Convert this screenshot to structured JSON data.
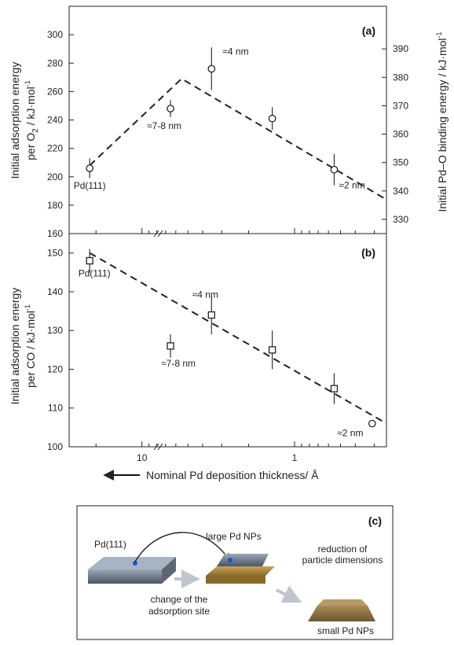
{
  "chart_data": [
    {
      "panel": "(a)",
      "type": "scatter",
      "ylabel_line1": "Initial adsorption energy",
      "ylabel_line2_prefix": "per O",
      "ylabel_line2_sub": "2",
      "ylabel_line2_suffix": " / kJ·mol",
      "ylabel_line2_sup": "-1",
      "y2label_prefix": "Initial Pd–O binding energy / kJ·mol",
      "y2label_sup": "-1",
      "ylim": [
        160,
        320
      ],
      "yticks": [
        160,
        180,
        200,
        220,
        240,
        260,
        280,
        300
      ],
      "y2lim": [
        325,
        405
      ],
      "y2ticks": [
        330,
        340,
        350,
        360,
        370,
        380,
        390
      ],
      "xscale": "log-reversed",
      "xlim": [
        30,
        0.25
      ],
      "points": [
        {
          "label": "Pd(111)",
          "x": 22,
          "y": 206,
          "err": 7
        },
        {
          "label": "≈7-8 nm",
          "x": 6.5,
          "y": 248,
          "err": 6
        },
        {
          "label": "≈4 nm",
          "x": 3.5,
          "y": 276,
          "err": 15
        },
        {
          "label": "",
          "x": 1.4,
          "y": 241,
          "err": 8
        },
        {
          "label": "≈2 nm",
          "x": 0.55,
          "y": 205,
          "err": 11
        }
      ],
      "trend": [
        [
          22,
          208
        ],
        [
          5.5,
          269
        ],
        [
          0.25,
          184
        ]
      ]
    },
    {
      "panel": "(b)",
      "type": "scatter",
      "ylabel_line1": "Initial adsorption energy",
      "ylabel_line2": "per CO / kJ·mol",
      "ylabel_line2_sup": "-1",
      "xlabel": "Nominal Pd deposition thickness/ Å",
      "ylim": [
        100,
        155
      ],
      "yticks": [
        100,
        110,
        120,
        130,
        140,
        150
      ],
      "xscale": "log-reversed",
      "xlim": [
        30,
        0.25
      ],
      "xticks": [
        {
          "value": 10,
          "label": "10"
        },
        {
          "value": 1,
          "label": "1"
        }
      ],
      "points": [
        {
          "label": "Pd(111)",
          "x": 22,
          "y": 148,
          "err": 3,
          "marker": "square"
        },
        {
          "label": "≈7-8 nm",
          "x": 6.5,
          "y": 126,
          "err": 3,
          "marker": "square"
        },
        {
          "label": "≈4 nm",
          "x": 3.5,
          "y": 134,
          "err": 5,
          "marker": "square"
        },
        {
          "label": "",
          "x": 1.4,
          "y": 125,
          "err": 5,
          "marker": "square"
        },
        {
          "label": "",
          "x": 0.55,
          "y": 115,
          "err": 4,
          "marker": "square"
        },
        {
          "label": "≈2 nm",
          "x": 0.31,
          "y": 106,
          "err": 0,
          "marker": "circle"
        }
      ],
      "trend": [
        [
          22,
          150
        ],
        [
          0.25,
          106
        ]
      ]
    }
  ],
  "diagram": {
    "panel": "(c)",
    "pd111_label": "Pd(111)",
    "large_label": "large Pd NPs",
    "reduction_line1": "reduction of",
    "reduction_line2": "particle dimensions",
    "change_line1": "change of the",
    "change_line2": "adsorption site",
    "small_label": "small Pd NPs"
  }
}
